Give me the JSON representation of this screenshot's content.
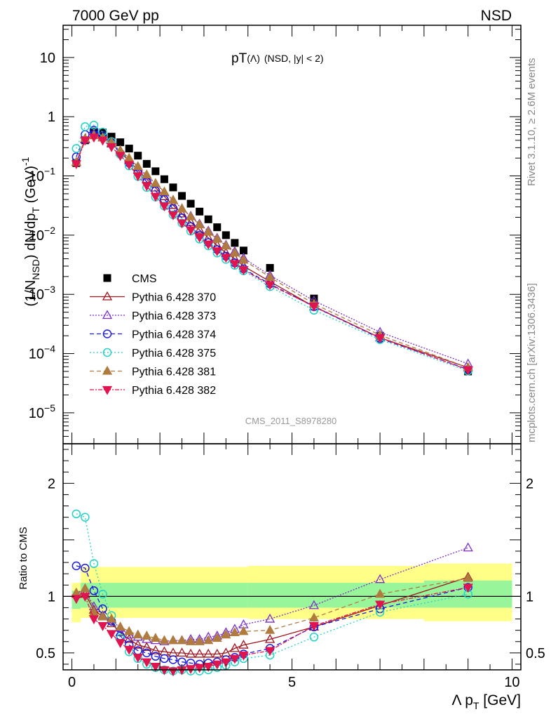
{
  "header": {
    "left": "7000 GeV pp",
    "right": "NSD"
  },
  "side": {
    "rivet": "Rivet 3.1.10, ≥ 2.6M events",
    "mcplots": "mcplots.cern.ch [arXiv:1306.3436]"
  },
  "watermark": "CMS_2011_S8978280",
  "chart_data": [
    {
      "type": "scatter",
      "panel": "main",
      "title_main": "pT",
      "title_lambda": "(Λ)",
      "title_suffix": "(NSD, |y| < 2)",
      "ylabel": "(1/N_NSD) dN/dp_T (GeV)^-1",
      "ylabel_parts": {
        "a": "(1/N",
        "sub1": "NSD",
        "b": ") dN/dp",
        "sub2": "T",
        "c": " (GeV)",
        "sup": "-1"
      },
      "yscale": "log",
      "xlim": [
        -0.2,
        10.2
      ],
      "ylim": [
        3e-06,
        35
      ],
      "yticks": [
        {
          "v": 1e-05,
          "base": "10",
          "exp": "−5"
        },
        {
          "v": 0.0001,
          "base": "10",
          "exp": "−4"
        },
        {
          "v": 0.001,
          "base": "10",
          "exp": "−3"
        },
        {
          "v": 0.01,
          "base": "10",
          "exp": "−2"
        },
        {
          "v": 0.1,
          "base": "10",
          "exp": "−1"
        },
        {
          "v": 1,
          "base": "1",
          "exp": ""
        },
        {
          "v": 10,
          "base": "10",
          "exp": ""
        }
      ],
      "legend_position": "lower-left",
      "x": [
        0.1,
        0.3,
        0.5,
        0.7,
        0.9,
        1.1,
        1.3,
        1.5,
        1.7,
        1.9,
        2.1,
        2.3,
        2.5,
        2.7,
        2.9,
        3.1,
        3.3,
        3.5,
        3.7,
        3.9,
        4.5,
        5.5,
        7.0,
        9.0
      ],
      "series": [
        {
          "name": "CMS",
          "color": "#000000",
          "marker": "square",
          "dash": "",
          "values": [
            0.165,
            0.4,
            0.56,
            0.54,
            0.46,
            0.37,
            0.29,
            0.22,
            0.16,
            0.12,
            0.088,
            0.064,
            0.046,
            0.034,
            0.025,
            0.0185,
            0.0136,
            0.01,
            0.0074,
            0.0055,
            0.0028,
            0.00085,
            0.0002,
            5e-05
          ]
        },
        {
          "name": "Pythia 6.428 370",
          "color": "#a0141e",
          "marker": "triangle-up-open",
          "dash": "",
          "values": [
            0.17,
            0.41,
            0.5,
            0.44,
            0.35,
            0.25,
            0.18,
            0.125,
            0.088,
            0.063,
            0.045,
            0.032,
            0.023,
            0.0165,
            0.0123,
            0.009,
            0.0067,
            0.005,
            0.004,
            0.003,
            0.00165,
            0.00062,
            0.000185,
            5.8e-05
          ]
        },
        {
          "name": "Pythia 6.428 373",
          "color": "#7b2fc9",
          "marker": "triangle-up-open",
          "dash": "2,2",
          "values": [
            0.17,
            0.42,
            0.51,
            0.45,
            0.36,
            0.265,
            0.19,
            0.14,
            0.1,
            0.074,
            0.053,
            0.039,
            0.028,
            0.021,
            0.0155,
            0.0118,
            0.0089,
            0.0068,
            0.0053,
            0.0041,
            0.0021,
            0.00078,
            0.00023,
            6.7e-05
          ]
        },
        {
          "name": "Pythia 6.428 374",
          "color": "#1a1ae0",
          "marker": "circle-open",
          "dash": "6,4",
          "values": [
            0.21,
            0.5,
            0.59,
            0.48,
            0.36,
            0.24,
            0.165,
            0.115,
            0.08,
            0.056,
            0.04,
            0.028,
            0.0195,
            0.014,
            0.01,
            0.0075,
            0.0057,
            0.0044,
            0.0034,
            0.0027,
            0.0015,
            0.00062,
            0.00018,
            5.4e-05
          ]
        },
        {
          "name": "Pythia 6.428 375",
          "color": "#22d1c8",
          "marker": "circle-open",
          "dash": "2,3",
          "values": [
            0.29,
            0.68,
            0.72,
            0.55,
            0.38,
            0.23,
            0.148,
            0.098,
            0.064,
            0.044,
            0.031,
            0.022,
            0.016,
            0.0117,
            0.0086,
            0.0066,
            0.005,
            0.0039,
            0.0031,
            0.0025,
            0.00135,
            0.00054,
            0.000172,
            5.1e-05
          ]
        },
        {
          "name": "Pythia 6.428 381",
          "color": "#b07b3f",
          "marker": "triangle-up-filled",
          "dash": "6,4",
          "values": [
            0.17,
            0.43,
            0.48,
            0.44,
            0.37,
            0.27,
            0.2,
            0.145,
            0.105,
            0.075,
            0.054,
            0.039,
            0.028,
            0.0205,
            0.015,
            0.0113,
            0.0086,
            0.0066,
            0.005,
            0.0038,
            0.00195,
            0.00069,
            0.000205,
            5.8e-05
          ]
        },
        {
          "name": "Pythia 6.428 382",
          "color": "#e0144e",
          "marker": "triangle-down-filled",
          "dash": "6,2,2,2",
          "values": [
            0.16,
            0.4,
            0.45,
            0.4,
            0.31,
            0.22,
            0.155,
            0.1,
            0.068,
            0.045,
            0.031,
            0.022,
            0.016,
            0.0122,
            0.0092,
            0.007,
            0.0054,
            0.0042,
            0.0033,
            0.0026,
            0.00145,
            0.00063,
            0.000185,
            5.3e-05
          ]
        }
      ]
    },
    {
      "type": "scatter",
      "panel": "ratio",
      "ylabel": "Ratio to CMS",
      "xlabel": "Λ p",
      "xlabel_sub": "T",
      "xlabel_unit": " [GeV]",
      "xlim": [
        -0.2,
        10.2
      ],
      "ylim": [
        0.35,
        2.35
      ],
      "yticks": [
        {
          "v": 0.5,
          "label": "0.5"
        },
        {
          "v": 1,
          "label": "1"
        },
        {
          "v": 2,
          "label": "2"
        }
      ],
      "xticks": [
        {
          "v": 0,
          "label": "0"
        },
        {
          "v": 5,
          "label": "5"
        },
        {
          "v": 10,
          "label": "10"
        }
      ],
      "reference_line": 1,
      "bands": [
        {
          "color": "#ffff88",
          "segments": [
            {
              "x0": 0,
              "x1": 0.2,
              "lo": 0.77,
              "hi": 1.12
            },
            {
              "x0": 0.2,
              "x1": 4.0,
              "lo": 0.81,
              "hi": 1.26
            },
            {
              "x0": 4.0,
              "x1": 8.0,
              "lo": 0.8,
              "hi": 1.27
            },
            {
              "x0": 8.0,
              "x1": 10.0,
              "lo": 0.78,
              "hi": 1.29
            }
          ]
        },
        {
          "color": "#99f599",
          "segments": [
            {
              "x0": 0,
              "x1": 0.2,
              "lo": 0.89,
              "hi": 1.05
            },
            {
              "x0": 0.2,
              "x1": 4.0,
              "lo": 0.9,
              "hi": 1.12
            },
            {
              "x0": 4.0,
              "x1": 8.0,
              "lo": 0.9,
              "hi": 1.12
            },
            {
              "x0": 8.0,
              "x1": 10.0,
              "lo": 0.9,
              "hi": 1.14
            }
          ]
        }
      ],
      "x": [
        0.1,
        0.3,
        0.5,
        0.7,
        0.9,
        1.1,
        1.3,
        1.5,
        1.7,
        1.9,
        2.1,
        2.3,
        2.5,
        2.7,
        2.9,
        3.1,
        3.3,
        3.5,
        3.7,
        3.9,
        4.5,
        5.5,
        7.0,
        9.0
      ],
      "series": [
        {
          "name": "Pythia 6.428 370",
          "color": "#a0141e",
          "marker": "triangle-up-open",
          "dash": "",
          "values": [
            1.02,
            1.02,
            0.88,
            0.82,
            0.76,
            0.68,
            0.62,
            0.57,
            0.55,
            0.52,
            0.51,
            0.5,
            0.5,
            0.49,
            0.49,
            0.49,
            0.49,
            0.5,
            0.54,
            0.57,
            0.62,
            0.73,
            0.92,
            1.17
          ]
        },
        {
          "name": "Pythia 6.428 373",
          "color": "#7b2fc9",
          "marker": "triangle-up-open",
          "dash": "2,2",
          "values": [
            1.03,
            1.05,
            0.91,
            0.83,
            0.79,
            0.72,
            0.66,
            0.64,
            0.62,
            0.61,
            0.6,
            0.61,
            0.61,
            0.62,
            0.62,
            0.64,
            0.65,
            0.68,
            0.71,
            0.75,
            0.8,
            0.92,
            1.15,
            1.43
          ]
        },
        {
          "name": "Pythia 6.428 374",
          "color": "#1a1ae0",
          "marker": "circle-open",
          "dash": "6,4",
          "values": [
            1.27,
            1.25,
            1.05,
            0.89,
            0.78,
            0.65,
            0.57,
            0.52,
            0.5,
            0.47,
            0.45,
            0.44,
            0.42,
            0.41,
            0.4,
            0.41,
            0.42,
            0.44,
            0.46,
            0.49,
            0.54,
            0.73,
            0.89,
            1.08
          ]
        },
        {
          "name": "Pythia 6.428 375",
          "color": "#22d1c8",
          "marker": "circle-open",
          "dash": "2,3",
          "values": [
            1.73,
            1.7,
            1.29,
            1.02,
            0.83,
            0.63,
            0.51,
            0.45,
            0.4,
            0.37,
            0.35,
            0.34,
            0.35,
            0.34,
            0.34,
            0.35,
            0.37,
            0.39,
            0.42,
            0.45,
            0.48,
            0.64,
            0.86,
            1.02
          ]
        },
        {
          "name": "Pythia 6.428 381",
          "color": "#b07b3f",
          "marker": "triangle-up-filled",
          "dash": "6,4",
          "values": [
            1.03,
            1.07,
            0.86,
            0.82,
            0.8,
            0.73,
            0.69,
            0.66,
            0.65,
            0.63,
            0.61,
            0.61,
            0.61,
            0.6,
            0.6,
            0.61,
            0.63,
            0.66,
            0.68,
            0.69,
            0.7,
            0.81,
            1.02,
            1.16
          ]
        },
        {
          "name": "Pythia 6.428 382",
          "color": "#e0144e",
          "marker": "triangle-down-filled",
          "dash": "6,2,2,2",
          "values": [
            0.98,
            1.0,
            0.8,
            0.74,
            0.67,
            0.59,
            0.53,
            0.46,
            0.42,
            0.38,
            0.35,
            0.34,
            0.35,
            0.36,
            0.37,
            0.38,
            0.4,
            0.42,
            0.45,
            0.48,
            0.52,
            0.74,
            0.93,
            1.08
          ]
        }
      ]
    }
  ]
}
